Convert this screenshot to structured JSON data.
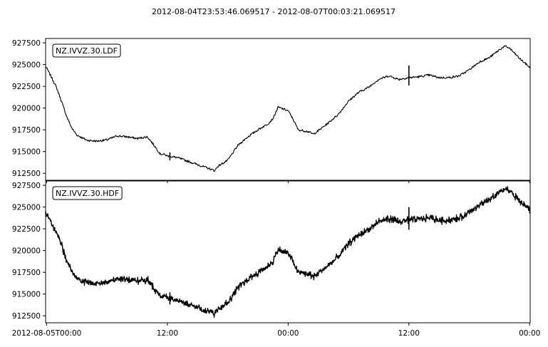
{
  "figure_title": "2012-08-04T23:53:46.069517  -  2012-08-07T00:03:21.069517",
  "chart_data": [
    {
      "type": "line",
      "series": [
        {
          "name": "NZ.IVVZ.30.LDF"
        }
      ],
      "label": "NZ.IVVZ.30.LDF",
      "xlabel": "",
      "ylabel": "",
      "x_tick_labels": [],
      "y_ticks": [
        912500,
        915000,
        917500,
        920000,
        922500,
        925000,
        927500
      ],
      "y_tick_labels": [
        "912500",
        "915000",
        "917500",
        "920000",
        "922500",
        "925000",
        "927500"
      ],
      "ylim": [
        911700,
        928000
      ],
      "x_domain_hours": [
        -0.104,
        48.056
      ],
      "x": [
        -0.104,
        0,
        0.5,
        1,
        1.5,
        2,
        2.5,
        3,
        4,
        5,
        6,
        7,
        8,
        9,
        10,
        10.5,
        11,
        11.3,
        11.6,
        12,
        13,
        14,
        15,
        16,
        16.7,
        17,
        18,
        19,
        20,
        21,
        22,
        22.5,
        23,
        24,
        24.5,
        25,
        26,
        26.5,
        27,
        28,
        29,
        30,
        31,
        32,
        33,
        34,
        35,
        36,
        37,
        38,
        39,
        40,
        41,
        42,
        43,
        44,
        45,
        45.5,
        46,
        46.5,
        47,
        47.5,
        48,
        48.056
      ],
      "y": [
        924800,
        924600,
        923500,
        922300,
        920700,
        919000,
        917700,
        916900,
        916300,
        916200,
        916350,
        916800,
        916700,
        916500,
        916700,
        916000,
        915200,
        914700,
        914700,
        914500,
        914300,
        913900,
        913500,
        913100,
        912800,
        913300,
        914000,
        915700,
        916700,
        917500,
        918200,
        918800,
        920100,
        919700,
        918700,
        917500,
        917300,
        917000,
        917400,
        918300,
        919300,
        920800,
        921800,
        922400,
        923300,
        923700,
        923300,
        923500,
        923600,
        923800,
        923500,
        923500,
        923700,
        924400,
        925300,
        925800,
        926700,
        927100,
        926900,
        926300,
        925700,
        925200,
        924700,
        924500
      ],
      "spikes_x": [
        12.25,
        36.0
      ],
      "y_lo_at_spikes": [
        914000,
        922600
      ],
      "y_hi_at_spikes": [
        914900,
        924900
      ],
      "line_color": "#000000"
    },
    {
      "type": "line",
      "series": [
        {
          "name": "NZ.IVVZ.30.HDF"
        }
      ],
      "label": "NZ.IVVZ.30.HDF",
      "xlabel": "",
      "ylabel": "",
      "x_tick_labels": [
        "2012-08-05T00:00",
        "12:00",
        "00:00",
        "12:00",
        "00:00"
      ],
      "x_ticks_hours": [
        0,
        12,
        24,
        36,
        48
      ],
      "y_ticks": [
        912500,
        915000,
        917500,
        920000,
        922500,
        925000,
        927500
      ],
      "y_tick_labels": [
        "912500",
        "915000",
        "917500",
        "920000",
        "922500",
        "925000",
        "927500"
      ],
      "ylim": [
        911700,
        928000
      ],
      "x_domain_hours": [
        -0.104,
        48.056
      ],
      "x": [
        -0.104,
        0,
        0.5,
        1,
        1.5,
        2,
        2.5,
        3,
        4,
        5,
        6,
        7,
        8,
        9,
        10,
        10.5,
        11,
        11.3,
        11.6,
        12,
        13,
        14,
        15,
        16,
        16.7,
        17,
        18,
        19,
        20,
        21,
        22,
        22.5,
        23,
        24,
        24.5,
        25,
        26,
        26.5,
        27,
        28,
        29,
        30,
        31,
        32,
        33,
        34,
        35,
        36,
        37,
        38,
        39,
        40,
        41,
        42,
        43,
        44,
        45,
        45.5,
        46,
        46.5,
        47,
        47.5,
        48,
        48.056
      ],
      "y": [
        924300,
        924100,
        923100,
        922000,
        920500,
        918800,
        917500,
        916800,
        916300,
        916200,
        916350,
        916800,
        916700,
        916500,
        916700,
        916000,
        915200,
        914800,
        914800,
        914500,
        914300,
        913900,
        913500,
        913000,
        912800,
        913300,
        914000,
        915700,
        916700,
        917500,
        918200,
        918800,
        920100,
        919700,
        918700,
        917500,
        917300,
        917000,
        917400,
        918300,
        919300,
        920800,
        921800,
        922400,
        923300,
        923700,
        923300,
        923500,
        923600,
        923800,
        923500,
        923500,
        923700,
        924400,
        925300,
        925800,
        926700,
        927100,
        926900,
        926300,
        925700,
        925200,
        924700,
        924500
      ],
      "spikes_x": [
        12.25,
        36.0
      ],
      "y_lo_at_spikes": [
        913800,
        922400
      ],
      "y_hi_at_spikes": [
        915200,
        925000
      ],
      "line_color": "#000000"
    }
  ]
}
